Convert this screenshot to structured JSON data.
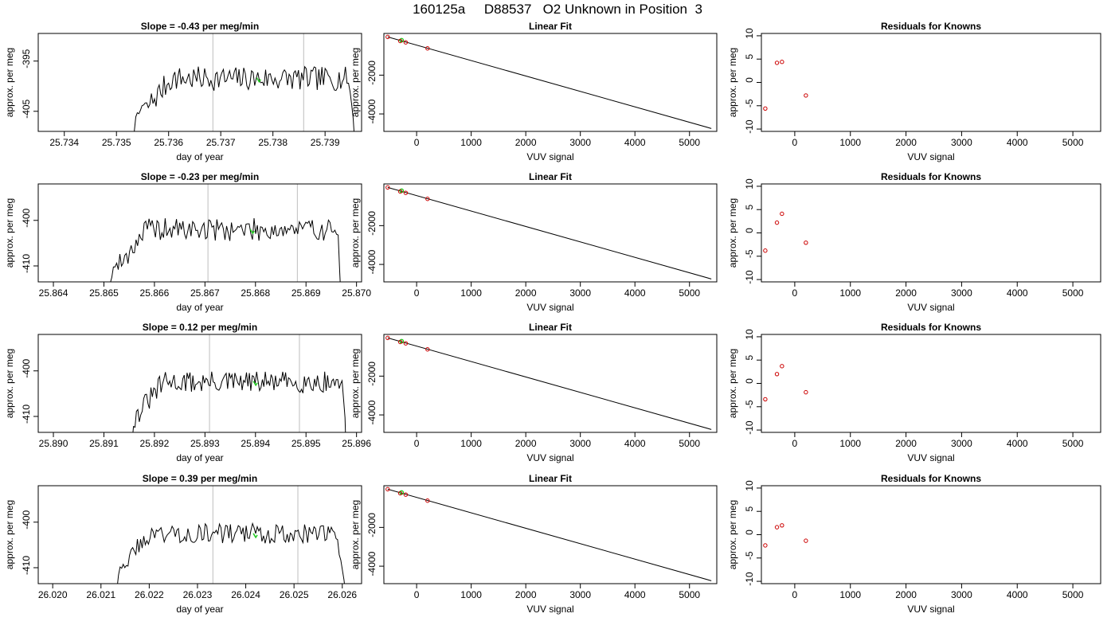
{
  "figure_title": "160125a     D88537   O2 Unknown in Position  3",
  "colors": {
    "signal": "#000000",
    "cal_marker": "#c8c8c8",
    "unknown_point": "#22cc22",
    "known_point": "#cc0000",
    "frame": "#000000"
  },
  "chart_data": [
    {
      "type": "line",
      "role": "timeseries",
      "title": "Slope =  -0.43  per meg/min",
      "xlabel": "day of year",
      "ylabel": "approx. per meg",
      "xlim": [
        25.7335,
        25.7397
      ],
      "ylim": [
        -409,
        -389.5
      ],
      "xticks": [
        25.734,
        25.735,
        25.736,
        25.737,
        25.738,
        25.739
      ],
      "xtick_labels": [
        "25.734",
        "25.735",
        "25.736",
        "25.737",
        "25.738",
        "25.739"
      ],
      "yticks": [
        -405,
        -395
      ],
      "ytick_labels": [
        "-405",
        "-395"
      ],
      "x_start": 25.7351,
      "x_end": 25.7396,
      "start_y": -415,
      "end_y": -415,
      "plateau": [
        25.7356,
        25.7394
      ],
      "ramp_start": -404,
      "level": -398.5,
      "noise": 2.4,
      "seed": 7,
      "marker_x": [
        25.73685,
        25.73859
      ],
      "highlight": {
        "x": 25.73772,
        "y": -398.8
      }
    },
    {
      "type": "scatter",
      "role": "linear_fit",
      "title": "Linear Fit",
      "xlabel": "VUV signal",
      "ylabel": "approx. per meg",
      "xlim": [
        -600,
        5500
      ],
      "ylim": [
        -4900,
        150
      ],
      "xticks": [
        0,
        1000,
        2000,
        3000,
        4000,
        5000
      ],
      "xtick_labels": [
        "0",
        "1000",
        "2000",
        "3000",
        "4000",
        "5000"
      ],
      "yticks": [
        -4000,
        -2000
      ],
      "ytick_labels": [
        "-4000",
        "-2000"
      ],
      "fit_line": {
        "x": [
          -530,
          5400
        ],
        "y": [
          -30,
          -4750
        ]
      },
      "known_points": {
        "x": [
          -530,
          -300,
          -200,
          200
        ],
        "y": [
          -30,
          -240,
          -310,
          -620
        ]
      },
      "unknown_points": {
        "x": [
          -275
        ],
        "y": [
          -200
        ]
      }
    },
    {
      "type": "scatter",
      "role": "residuals",
      "title": "Residuals for Knowns",
      "xlabel": "VUV signal",
      "ylabel": "approx. per meg",
      "xlim": [
        -600,
        5500
      ],
      "ylim": [
        -10.5,
        10.5
      ],
      "xticks": [
        0,
        1000,
        2000,
        3000,
        4000,
        5000
      ],
      "xtick_labels": [
        "0",
        "1000",
        "2000",
        "3000",
        "4000",
        "5000"
      ],
      "yticks": [
        -10,
        -5,
        0,
        5,
        10
      ],
      "ytick_labels": [
        "-10",
        "-5",
        "0",
        "5",
        "10"
      ],
      "known_points": {
        "x": [
          -530,
          -320,
          -230,
          200
        ],
        "y": [
          -5.6,
          4.2,
          4.4,
          -2.8
        ]
      }
    },
    {
      "type": "line",
      "role": "timeseries",
      "title": "Slope =  -0.23  per meg/min",
      "xlabel": "day of year",
      "ylabel": "approx. per meg",
      "xlim": [
        25.8637,
        25.8701
      ],
      "ylim": [
        -413.5,
        -392
      ],
      "xticks": [
        25.864,
        25.865,
        25.866,
        25.867,
        25.868,
        25.869,
        25.87
      ],
      "xtick_labels": [
        "25.864",
        "25.865",
        "25.866",
        "25.867",
        "25.868",
        "25.869",
        "25.870"
      ],
      "yticks": [
        -410,
        -400
      ],
      "ytick_labels": [
        "-410",
        "-400"
      ],
      "x_start": 25.8649,
      "x_end": 25.8697,
      "start_y": -420,
      "end_y": -420,
      "plateau": [
        25.8653,
        25.8696
      ],
      "ramp_start": -410,
      "level": -402,
      "noise": 2.5,
      "seed": 19,
      "marker_x": [
        25.86706,
        25.86883
      ],
      "highlight": {
        "x": 25.86793,
        "y": -402.5
      }
    },
    {
      "type": "scatter",
      "role": "linear_fit",
      "title": "Linear Fit",
      "xlabel": "VUV signal",
      "ylabel": "approx. per meg",
      "xlim": [
        -600,
        5500
      ],
      "ylim": [
        -4900,
        150
      ],
      "xticks": [
        0,
        1000,
        2000,
        3000,
        4000,
        5000
      ],
      "xtick_labels": [
        "0",
        "1000",
        "2000",
        "3000",
        "4000",
        "5000"
      ],
      "yticks": [
        -4000,
        -2000
      ],
      "ytick_labels": [
        "-4000",
        "-2000"
      ],
      "fit_line": {
        "x": [
          -530,
          5400
        ],
        "y": [
          -30,
          -4750
        ]
      },
      "known_points": {
        "x": [
          -530,
          -300,
          -200,
          200
        ],
        "y": [
          -30,
          -240,
          -310,
          -620
        ]
      },
      "unknown_points": {
        "x": [
          -275
        ],
        "y": [
          -200
        ]
      }
    },
    {
      "type": "scatter",
      "role": "residuals",
      "title": "Residuals for Knowns",
      "xlabel": "VUV signal",
      "ylabel": "approx. per meg",
      "xlim": [
        -600,
        5500
      ],
      "ylim": [
        -10.5,
        10.5
      ],
      "xticks": [
        0,
        1000,
        2000,
        3000,
        4000,
        5000
      ],
      "xtick_labels": [
        "0",
        "1000",
        "2000",
        "3000",
        "4000",
        "5000"
      ],
      "yticks": [
        -10,
        -5,
        0,
        5,
        10
      ],
      "ytick_labels": [
        "-10",
        "-5",
        "0",
        "5",
        "10"
      ],
      "known_points": {
        "x": [
          -530,
          -320,
          -230,
          200
        ],
        "y": [
          -3.8,
          2.2,
          4.1,
          -2.1
        ]
      }
    },
    {
      "type": "line",
      "role": "timeseries",
      "title": "Slope =  0.12  per meg/min",
      "xlabel": "day of year",
      "ylabel": "approx. per meg",
      "xlim": [
        25.8897,
        25.8961
      ],
      "ylim": [
        -413.5,
        -392
      ],
      "xticks": [
        25.89,
        25.891,
        25.892,
        25.893,
        25.894,
        25.895,
        25.896
      ],
      "xtick_labels": [
        "25.890",
        "25.891",
        "25.892",
        "25.893",
        "25.894",
        "25.895",
        "25.896"
      ],
      "yticks": [
        -410,
        -400
      ],
      "ytick_labels": [
        "-410",
        "-400"
      ],
      "x_start": 25.8915,
      "x_end": 25.8958,
      "start_y": -418,
      "end_y": -420,
      "plateau": [
        25.8917,
        25.8957
      ],
      "ramp_start": -409,
      "level": -402.5,
      "noise": 2.4,
      "seed": 31,
      "marker_x": [
        25.89309,
        25.89487
      ],
      "highlight": {
        "x": 25.89399,
        "y": -402.8
      }
    },
    {
      "type": "scatter",
      "role": "linear_fit",
      "title": "Linear Fit",
      "xlabel": "VUV signal",
      "ylabel": "approx. per meg",
      "xlim": [
        -600,
        5500
      ],
      "ylim": [
        -4900,
        150
      ],
      "xticks": [
        0,
        1000,
        2000,
        3000,
        4000,
        5000
      ],
      "xtick_labels": [
        "0",
        "1000",
        "2000",
        "3000",
        "4000",
        "5000"
      ],
      "yticks": [
        -4000,
        -2000
      ],
      "ytick_labels": [
        "-4000",
        "-2000"
      ],
      "fit_line": {
        "x": [
          -530,
          5400
        ],
        "y": [
          -30,
          -4750
        ]
      },
      "known_points": {
        "x": [
          -530,
          -300,
          -200,
          200
        ],
        "y": [
          -30,
          -240,
          -310,
          -620
        ]
      },
      "unknown_points": {
        "x": [
          -275
        ],
        "y": [
          -200
        ]
      }
    },
    {
      "type": "scatter",
      "role": "residuals",
      "title": "Residuals for Knowns",
      "xlabel": "VUV signal",
      "ylabel": "approx. per meg",
      "xlim": [
        -600,
        5500
      ],
      "ylim": [
        -10.5,
        10.5
      ],
      "xticks": [
        0,
        1000,
        2000,
        3000,
        4000,
        5000
      ],
      "xtick_labels": [
        "0",
        "1000",
        "2000",
        "3000",
        "4000",
        "5000"
      ],
      "yticks": [
        -10,
        -5,
        0,
        5,
        10
      ],
      "ytick_labels": [
        "-10",
        "-5",
        "0",
        "5",
        "10"
      ],
      "known_points": {
        "x": [
          -530,
          -320,
          -230,
          200
        ],
        "y": [
          -3.4,
          2.0,
          3.7,
          -1.9
        ]
      }
    },
    {
      "type": "line",
      "role": "timeseries",
      "title": "Slope =  0.39  per meg/min",
      "xlabel": "day of year",
      "ylabel": "approx. per meg",
      "xlim": [
        26.0197,
        26.0264
      ],
      "ylim": [
        -413.5,
        -392
      ],
      "xticks": [
        26.02,
        26.021,
        26.022,
        26.023,
        26.024,
        26.025,
        26.026
      ],
      "xtick_labels": [
        "26.020",
        "26.021",
        "26.022",
        "26.023",
        "26.024",
        "26.025",
        "26.026"
      ],
      "yticks": [
        -410,
        -400
      ],
      "ytick_labels": [
        "-410",
        "-400"
      ],
      "x_start": 26.0212,
      "x_end": 26.0261,
      "start_y": -420,
      "end_y": -420,
      "plateau": [
        26.0215,
        26.0258
      ],
      "ramp_start": -409,
      "level": -402.5,
      "noise": 2.2,
      "seed": 43,
      "marker_x": [
        26.02332,
        26.02508
      ],
      "highlight": {
        "x": 26.02419,
        "y": -403
      }
    },
    {
      "type": "scatter",
      "role": "linear_fit",
      "title": "Linear Fit",
      "xlabel": "VUV signal",
      "ylabel": "approx. per meg",
      "xlim": [
        -600,
        5500
      ],
      "ylim": [
        -4900,
        150
      ],
      "xticks": [
        0,
        1000,
        2000,
        3000,
        4000,
        5000
      ],
      "xtick_labels": [
        "0",
        "1000",
        "2000",
        "3000",
        "4000",
        "5000"
      ],
      "yticks": [
        -4000,
        -2000
      ],
      "ytick_labels": [
        "-4000",
        "-2000"
      ],
      "fit_line": {
        "x": [
          -530,
          5400
        ],
        "y": [
          -30,
          -4750
        ]
      },
      "known_points": {
        "x": [
          -530,
          -300,
          -200,
          200
        ],
        "y": [
          -30,
          -240,
          -310,
          -620
        ]
      },
      "unknown_points": {
        "x": [
          -275
        ],
        "y": [
          -200
        ]
      }
    },
    {
      "type": "scatter",
      "role": "residuals",
      "title": "Residuals for Knowns",
      "xlabel": "VUV signal",
      "ylabel": "approx. per meg",
      "xlim": [
        -600,
        5500
      ],
      "ylim": [
        -10.5,
        10.5
      ],
      "xticks": [
        0,
        1000,
        2000,
        3000,
        4000,
        5000
      ],
      "xtick_labels": [
        "0",
        "1000",
        "2000",
        "3000",
        "4000",
        "5000"
      ],
      "yticks": [
        -10,
        -5,
        0,
        5,
        10
      ],
      "ytick_labels": [
        "-10",
        "-5",
        "0",
        "5",
        "10"
      ],
      "known_points": {
        "x": [
          -530,
          -320,
          -230,
          200
        ],
        "y": [
          -2.3,
          1.6,
          2.0,
          -1.3
        ]
      }
    }
  ]
}
